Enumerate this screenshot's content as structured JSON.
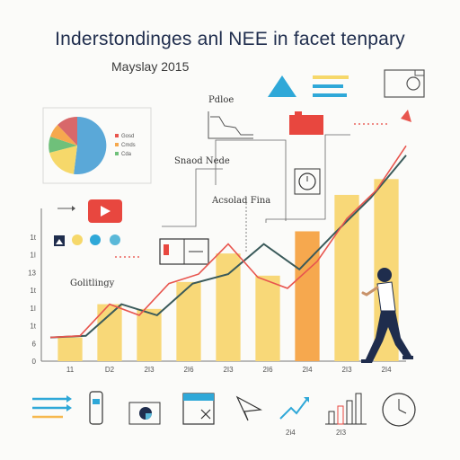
{
  "title": "Inderstondinges anl NEE in facet tenpary",
  "subtitle": "Mayslay 2015",
  "callouts": {
    "top_right_label": "Pdloe",
    "mid_label": "Snaod Nede",
    "annotation": "Acsolad Fina",
    "left_label": "Golitlingy"
  },
  "pie": {
    "legend": [
      "Gosd",
      "Cmds",
      "Cda"
    ]
  },
  "colors": {
    "bar": "#f8d878",
    "bar_highlight": "#f6a84e",
    "line_main": "#e8554e",
    "line_dark": "#3a5a5a",
    "accent_blue": "#2fa8d8",
    "accent_red": "#e8473f",
    "navy": "#1f2d4d"
  },
  "chart_data": {
    "type": "bar",
    "categories": [
      "11",
      "D2",
      "2I3",
      "2I6",
      "2I3",
      "2I6",
      "2I4",
      "2I3",
      "2I4"
    ],
    "y_tick_labels": [
      "1t",
      "1I",
      "13",
      "1t",
      "1I",
      "1t",
      "6",
      "0"
    ],
    "series": [
      {
        "values": [
          1.5,
          3.6,
          3.3,
          5.0,
          6.8,
          5.4,
          8.2,
          10.5,
          11.5
        ]
      }
    ],
    "line_upper": [
      1.5,
      1.6,
      3.6,
      2.9,
      4.9,
      5.5,
      7.4,
      5.8,
      8.1,
      10.3,
      13.0
    ],
    "line_lower": [
      1.5,
      1.6,
      3.6,
      2.9,
      4.9,
      5.5,
      7.4,
      5.3,
      4.6,
      6.3,
      9.0,
      10.8,
      13.6
    ],
    "ylim": [
      0,
      16
    ],
    "grid": false
  },
  "icons": {
    "row_top": [
      "youtube-play-icon",
      "triangle-icon",
      "list-lines-icon",
      "image-frame-icon"
    ],
    "row_left": [
      "image-icon",
      "circle-yellow-icon",
      "circle-blue-icon",
      "circle-teal-icon"
    ],
    "row_bottom": [
      "arrows-right-icon",
      "phone-icon",
      "card-icon",
      "calendar-icon",
      "paper-plane-icon",
      "line-up-icon",
      "bar-chart-icon",
      "clock-icon"
    ],
    "bottom_labels": [
      "2i4",
      "2I3"
    ]
  },
  "person": "walking-person-icon"
}
